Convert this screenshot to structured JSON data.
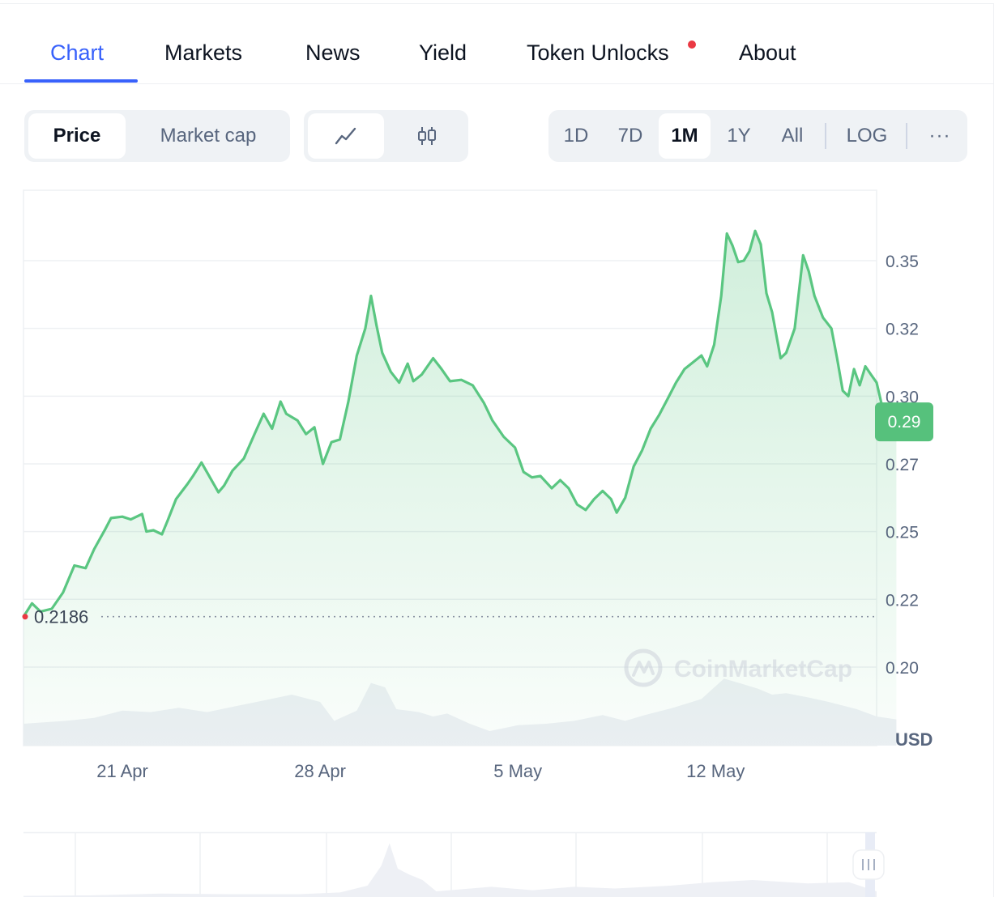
{
  "tabs": [
    {
      "label": "Chart",
      "active": true
    },
    {
      "label": "Markets"
    },
    {
      "label": "News"
    },
    {
      "label": "Yield"
    },
    {
      "label": "Token Unlocks",
      "notification": true
    },
    {
      "label": "About"
    }
  ],
  "toolbar": {
    "type_toggle": {
      "price": "Price",
      "market_cap": "Market cap",
      "selected": "Price"
    },
    "chart_style": {
      "line_icon": "line-chart-icon",
      "candle_icon": "candlestick-icon",
      "selected": "line"
    },
    "ranges": [
      "1D",
      "7D",
      "1M",
      "1Y",
      "All"
    ],
    "selected_range": "1M",
    "log_label": "LOG",
    "more_label": "···"
  },
  "colors": {
    "accent": "#3861fb",
    "line": "#5ac681",
    "badge": "#56c17c",
    "start_dot": "#ea3943"
  },
  "watermark": {
    "text": "CoinMarketCap"
  },
  "chart_data": {
    "type": "area",
    "currency_label": "USD",
    "y_ticks": [
      "0.35",
      "0.32",
      "0.30",
      "0.27",
      "0.25",
      "0.22",
      "0.20"
    ],
    "y_tick_values": [
      0.35,
      0.325,
      0.3,
      0.275,
      0.25,
      0.225,
      0.2
    ],
    "ylim": [
      0.171,
      0.376
    ],
    "x_ticks": [
      "21 Apr",
      "28 Apr",
      "5 May",
      "12 May"
    ],
    "x_tick_positions": [
      3.5,
      10.5,
      17.5,
      24.5
    ],
    "xlim": [
      0,
      30.2
    ],
    "current_price": "0.29",
    "current_value": 0.2905,
    "start_price": "0.2186",
    "start_value": 0.2186,
    "series": [
      {
        "values": [
          [
            0.0,
            0.2186
          ],
          [
            0.3,
            0.2235
          ],
          [
            0.6,
            0.2205
          ],
          [
            1.0,
            0.2215
          ],
          [
            1.4,
            0.2275
          ],
          [
            1.8,
            0.2375
          ],
          [
            2.2,
            0.2365
          ],
          [
            2.5,
            0.2435
          ],
          [
            2.9,
            0.251
          ],
          [
            3.1,
            0.255
          ],
          [
            3.5,
            0.2555
          ],
          [
            3.8,
            0.2545
          ],
          [
            4.2,
            0.2565
          ],
          [
            4.35,
            0.25
          ],
          [
            4.6,
            0.2505
          ],
          [
            4.9,
            0.249
          ],
          [
            5.1,
            0.254
          ],
          [
            5.4,
            0.262
          ],
          [
            5.8,
            0.2675
          ],
          [
            6.0,
            0.2705
          ],
          [
            6.3,
            0.2755
          ],
          [
            6.6,
            0.27
          ],
          [
            6.9,
            0.2645
          ],
          [
            7.1,
            0.267
          ],
          [
            7.4,
            0.2725
          ],
          [
            7.8,
            0.277
          ],
          [
            8.2,
            0.2865
          ],
          [
            8.5,
            0.2935
          ],
          [
            8.8,
            0.288
          ],
          [
            9.1,
            0.298
          ],
          [
            9.3,
            0.2935
          ],
          [
            9.7,
            0.291
          ],
          [
            10.0,
            0.286
          ],
          [
            10.3,
            0.2885
          ],
          [
            10.6,
            0.275
          ],
          [
            10.9,
            0.283
          ],
          [
            11.2,
            0.284
          ],
          [
            11.5,
            0.298
          ],
          [
            11.8,
            0.315
          ],
          [
            12.1,
            0.325
          ],
          [
            12.3,
            0.337
          ],
          [
            12.5,
            0.326
          ],
          [
            12.7,
            0.316
          ],
          [
            13.0,
            0.309
          ],
          [
            13.3,
            0.305
          ],
          [
            13.6,
            0.312
          ],
          [
            13.8,
            0.3055
          ],
          [
            14.1,
            0.308
          ],
          [
            14.5,
            0.314
          ],
          [
            14.8,
            0.31
          ],
          [
            15.1,
            0.3055
          ],
          [
            15.5,
            0.306
          ],
          [
            15.9,
            0.304
          ],
          [
            16.3,
            0.2975
          ],
          [
            16.6,
            0.291
          ],
          [
            17.0,
            0.285
          ],
          [
            17.4,
            0.281
          ],
          [
            17.7,
            0.272
          ],
          [
            18.0,
            0.27
          ],
          [
            18.3,
            0.2705
          ],
          [
            18.7,
            0.266
          ],
          [
            19.0,
            0.269
          ],
          [
            19.3,
            0.266
          ],
          [
            19.6,
            0.26
          ],
          [
            19.9,
            0.258
          ],
          [
            20.2,
            0.262
          ],
          [
            20.5,
            0.265
          ],
          [
            20.8,
            0.262
          ],
          [
            21.0,
            0.257
          ],
          [
            21.3,
            0.2625
          ],
          [
            21.6,
            0.274
          ],
          [
            21.9,
            0.28
          ],
          [
            22.2,
            0.288
          ],
          [
            22.5,
            0.293
          ],
          [
            22.8,
            0.299
          ],
          [
            23.1,
            0.305
          ],
          [
            23.4,
            0.31
          ],
          [
            23.7,
            0.3125
          ],
          [
            24.0,
            0.315
          ],
          [
            24.2,
            0.311
          ],
          [
            24.45,
            0.319
          ],
          [
            24.7,
            0.337
          ],
          [
            24.9,
            0.36
          ],
          [
            25.1,
            0.3555
          ],
          [
            25.3,
            0.3495
          ],
          [
            25.5,
            0.35
          ],
          [
            25.7,
            0.3535
          ],
          [
            25.9,
            0.361
          ],
          [
            26.1,
            0.356
          ],
          [
            26.3,
            0.338
          ],
          [
            26.5,
            0.331
          ],
          [
            26.8,
            0.314
          ],
          [
            27.0,
            0.316
          ],
          [
            27.3,
            0.325
          ],
          [
            27.6,
            0.352
          ],
          [
            27.8,
            0.346
          ],
          [
            28.0,
            0.337
          ],
          [
            28.3,
            0.329
          ],
          [
            28.6,
            0.325
          ],
          [
            28.8,
            0.314
          ],
          [
            29.0,
            0.302
          ],
          [
            29.2,
            0.3
          ],
          [
            29.4,
            0.31
          ],
          [
            29.6,
            0.304
          ],
          [
            29.8,
            0.311
          ],
          [
            30.0,
            0.308
          ],
          [
            30.2,
            0.305
          ],
          [
            30.4,
            0.296
          ],
          [
            30.6,
            0.29
          ],
          [
            30.8,
            0.2915
          ],
          [
            30.9,
            0.2905
          ]
        ]
      }
    ],
    "volume": [
      [
        0.0,
        0.3
      ],
      [
        1.5,
        0.34
      ],
      [
        2.5,
        0.38
      ],
      [
        3.5,
        0.48
      ],
      [
        4.5,
        0.46
      ],
      [
        5.5,
        0.52
      ],
      [
        6.5,
        0.46
      ],
      [
        7.5,
        0.54
      ],
      [
        8.5,
        0.62
      ],
      [
        9.5,
        0.7
      ],
      [
        10.5,
        0.6
      ],
      [
        11.0,
        0.34
      ],
      [
        11.8,
        0.48
      ],
      [
        12.3,
        0.86
      ],
      [
        12.8,
        0.8
      ],
      [
        13.2,
        0.5
      ],
      [
        14.0,
        0.46
      ],
      [
        14.5,
        0.4
      ],
      [
        15.0,
        0.44
      ],
      [
        15.8,
        0.3
      ],
      [
        16.5,
        0.2
      ],
      [
        17.5,
        0.28
      ],
      [
        18.5,
        0.3
      ],
      [
        19.5,
        0.34
      ],
      [
        20.5,
        0.42
      ],
      [
        21.3,
        0.34
      ],
      [
        22.0,
        0.42
      ],
      [
        23.0,
        0.52
      ],
      [
        24.0,
        0.64
      ],
      [
        24.8,
        0.92
      ],
      [
        25.5,
        0.84
      ],
      [
        26.0,
        0.78
      ],
      [
        26.5,
        0.7
      ],
      [
        27.0,
        0.72
      ],
      [
        27.8,
        0.66
      ],
      [
        28.5,
        0.6
      ],
      [
        29.5,
        0.5
      ],
      [
        30.2,
        0.4
      ],
      [
        30.9,
        0.36
      ]
    ],
    "navigator": [
      [
        0.0,
        0.02
      ],
      [
        2.5,
        0.03
      ],
      [
        5.0,
        0.06
      ],
      [
        7.5,
        0.05
      ],
      [
        10.0,
        0.05
      ],
      [
        11.5,
        0.08
      ],
      [
        12.5,
        0.2
      ],
      [
        13.0,
        0.55
      ],
      [
        13.3,
        0.95
      ],
      [
        13.6,
        0.5
      ],
      [
        14.0,
        0.4
      ],
      [
        14.5,
        0.3
      ],
      [
        15.0,
        0.1
      ],
      [
        17.0,
        0.18
      ],
      [
        18.5,
        0.12
      ],
      [
        20.0,
        0.18
      ],
      [
        21.5,
        0.15
      ],
      [
        23.5,
        0.2
      ],
      [
        25.0,
        0.26
      ],
      [
        26.5,
        0.3
      ],
      [
        28.5,
        0.24
      ],
      [
        30.0,
        0.26
      ],
      [
        31.0,
        0.1
      ]
    ]
  }
}
